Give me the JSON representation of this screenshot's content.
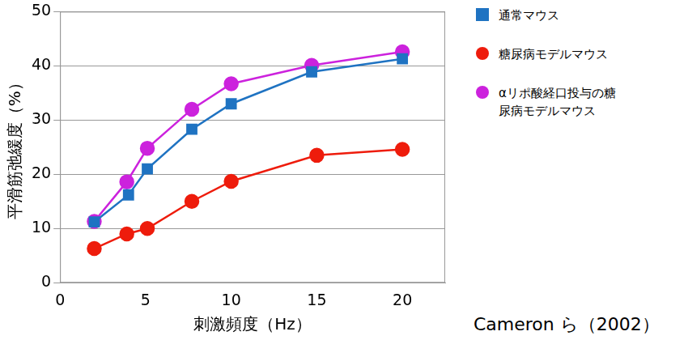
{
  "chart_data": {
    "type": "line",
    "x_label": "刺激頻度（Hz）",
    "y_label": "平滑筋弛緩度（%）",
    "annotation": "Cameron ら（2002）",
    "xlim": [
      0,
      22.5
    ],
    "xticks": [
      0,
      5,
      10,
      15,
      20
    ],
    "ylim": [
      0,
      50
    ],
    "yticks": [
      0,
      10,
      20,
      30,
      40,
      50
    ],
    "grid": "y",
    "legend": "right",
    "series": [
      {
        "name": "通常マウス",
        "color": "#1f73c2",
        "marker": "square",
        "line_style": "solid",
        "x": [
          2,
          4,
          5.1,
          7.7,
          10,
          14.7,
          20
        ],
        "values": [
          11.2,
          16.2,
          21,
          28.3,
          33,
          38.9,
          41.3
        ]
      },
      {
        "name": "糖尿病モデルマウス",
        "color": "#ee1c0c",
        "marker": "circle",
        "line_style": "solid",
        "x": [
          2,
          3.9,
          5.1,
          7.7,
          10,
          15,
          20
        ],
        "values": [
          6.3,
          9,
          10,
          15,
          18.7,
          23.5,
          24.6
        ]
      },
      {
        "name": "αリポ酸経口投与の糖尿病モデルマウス",
        "color": "#cc22dd",
        "marker": "circle",
        "line_style": "solid",
        "x": [
          2,
          3.9,
          5.1,
          7.7,
          10,
          14.7,
          20
        ],
        "values": [
          11.3,
          18.6,
          24.8,
          32,
          36.7,
          40.1,
          42.6
        ]
      }
    ]
  }
}
